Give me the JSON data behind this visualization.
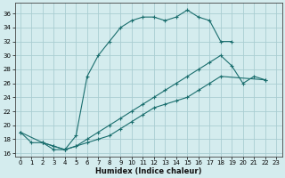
{
  "xlabel": "Humidex (Indice chaleur)",
  "bg_color": "#d4ecee",
  "grid_color": "#aacdd2",
  "line_color": "#1a6e6e",
  "xlim": [
    -0.5,
    23.5
  ],
  "ylim": [
    15.5,
    37.5
  ],
  "xticks": [
    0,
    1,
    2,
    3,
    4,
    5,
    6,
    7,
    8,
    9,
    10,
    11,
    12,
    13,
    14,
    15,
    16,
    17,
    18,
    19,
    20,
    21,
    22,
    23
  ],
  "yticks": [
    16,
    18,
    20,
    22,
    24,
    26,
    28,
    30,
    32,
    34,
    36
  ],
  "line1_x": [
    0,
    1,
    2,
    3,
    4,
    5,
    6,
    7,
    8,
    9,
    10,
    11,
    12,
    13,
    14,
    15,
    16,
    17,
    18,
    19
  ],
  "line1_y": [
    19,
    17.5,
    17.5,
    16.5,
    16.5,
    18.5,
    27,
    30,
    32,
    34,
    35,
    35.5,
    35.5,
    35,
    35.5,
    36.5,
    35.5,
    35,
    32,
    32
  ],
  "line2_x": [
    0,
    2,
    3,
    4,
    5,
    6,
    7,
    8,
    9,
    10,
    11,
    12,
    13,
    14,
    15,
    16,
    17,
    18,
    19,
    20,
    21,
    22
  ],
  "line2_y": [
    19,
    17.5,
    17,
    16.5,
    17,
    18,
    19,
    20,
    21,
    22,
    23,
    24,
    25,
    26,
    27,
    28,
    29,
    30,
    28.5,
    26,
    27,
    26.5
  ],
  "line3_x": [
    2,
    3,
    4,
    5,
    6,
    7,
    8,
    9,
    10,
    11,
    12,
    13,
    14,
    15,
    16,
    17,
    18,
    22
  ],
  "line3_y": [
    17.5,
    17,
    16.5,
    17,
    17.5,
    18,
    18.5,
    19.5,
    20.5,
    21.5,
    22.5,
    23,
    23.5,
    24,
    25,
    26,
    27,
    26.5
  ]
}
